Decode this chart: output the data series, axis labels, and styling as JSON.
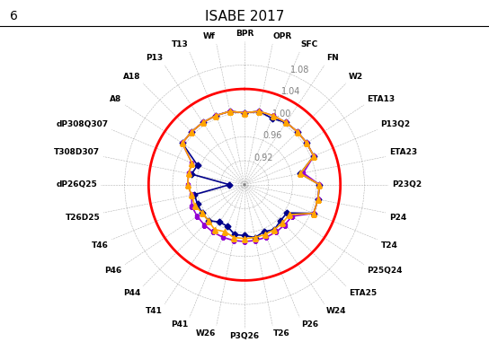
{
  "title": "ISABE 2017",
  "page_num": "6",
  "categories": [
    "BPR",
    "OPR",
    "SFC",
    "FN",
    "W2",
    "ETA13",
    "P13Q2",
    "ETA23",
    "P23Q2",
    "P24",
    "T24",
    "P25Q24",
    "ETA25",
    "W24",
    "P26",
    "T26",
    "P3Q26",
    "W26",
    "P41",
    "T41",
    "P44",
    "P46",
    "T46",
    "T26D25",
    "dP26Q25",
    "T308D307",
    "dP308Q307",
    "A8",
    "A18",
    "P13",
    "T13",
    "Wf"
  ],
  "rmin": 0.88,
  "rmax": 1.12,
  "rticks": [
    0.92,
    0.96,
    1.0,
    1.04,
    1.08
  ],
  "dev_circle": 1.04,
  "TO": [
    1.0,
    1.005,
    1.0,
    1.005,
    1.005,
    1.005,
    1.005,
    0.975,
    1.005,
    1.005,
    1.005,
    0.965,
    0.965,
    0.97,
    0.965,
    0.97,
    0.965,
    0.965,
    0.955,
    0.955,
    0.965,
    0.965,
    0.965,
    0.965,
    0.905,
    0.97,
    0.965,
    1.005,
    1.005,
    1.005,
    1.005,
    1.005
  ],
  "TOC": [
    1.0,
    1.005,
    1.005,
    1.005,
    1.005,
    1.005,
    1.005,
    0.98,
    1.005,
    1.005,
    1.005,
    0.975,
    0.975,
    0.975,
    0.975,
    0.975,
    0.975,
    0.975,
    0.975,
    0.975,
    0.975,
    0.975,
    0.975,
    0.97,
    0.975,
    0.975,
    0.975,
    1.005,
    1.005,
    1.005,
    1.005,
    1.005
  ],
  "MidCr": [
    1.0,
    1.005,
    1.005,
    1.005,
    1.005,
    1.005,
    1.005,
    0.975,
    1.005,
    1.005,
    1.005,
    0.97,
    0.97,
    0.97,
    0.97,
    0.97,
    0.97,
    0.97,
    0.965,
    0.97,
    0.965,
    0.965,
    0.97,
    0.97,
    0.975,
    0.975,
    0.975,
    1.005,
    1.005,
    1.005,
    1.005,
    1.005
  ],
  "color_TO": "#00008B",
  "color_TOC": "#9400D3",
  "color_MidCr": "#FFA500",
  "color_dev": "#FF0000",
  "bg_color": "#FFFFFF",
  "label_fontsize": 6.5,
  "tick_fontsize": 7.0,
  "legend_fontsize": 8.5
}
